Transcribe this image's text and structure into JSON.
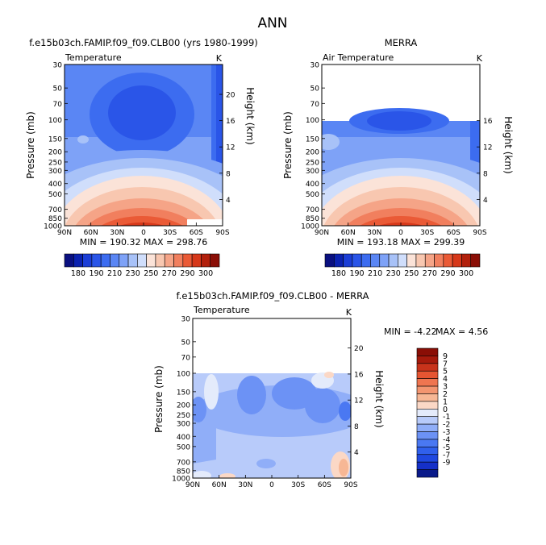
{
  "page_title": "ANN",
  "colors": {
    "levels_abs": [
      "#0a1080",
      "#0b22b0",
      "#1b3ed6",
      "#2a55e8",
      "#3c6cf0",
      "#5a86f4",
      "#7ea2f7",
      "#a8c2f8",
      "#d0defb",
      "#fbe3d8",
      "#f8c7b0",
      "#f5a487",
      "#f17f5e",
      "#ea5a36",
      "#d6381a",
      "#b2200c",
      "#8a0e06"
    ],
    "levels_diff": [
      "#0a1a8a",
      "#1530c8",
      "#1f48e0",
      "#3060ec",
      "#4a78f2",
      "#6c92f5",
      "#90aef8",
      "#b8cbfa",
      "#e4ebfb",
      "#fbd8c6",
      "#f7b795",
      "#f39570",
      "#ef7550",
      "#e55532",
      "#c8331b",
      "#a61a0c",
      "#8a0e06"
    ],
    "no_data": "#ffffff"
  },
  "chart_data": [
    {
      "type": "heatmap",
      "title": "f.e15b03ch.FAMIP.f09_f09.CLB00 (yrs 1980-1999)",
      "variable_label": "Temperature",
      "units_label": "K",
      "ylabel": "Pressure (mb)",
      "y2label": "Height (km)",
      "x_ticks": [
        "90N",
        "60N",
        "30N",
        "0",
        "30S",
        "60S",
        "90S"
      ],
      "y_ticks": [
        "30",
        "50",
        "70",
        "100",
        "150",
        "200",
        "250",
        "300",
        "400",
        "500",
        "700",
        "850",
        "1000"
      ],
      "y2_ticks": [
        "20",
        "16",
        "12",
        "8",
        "4"
      ],
      "stats": "MIN = 190.32   MAX = 298.76",
      "colorbar_ticks": [
        "180",
        "190",
        "210",
        "230",
        "250",
        "270",
        "290",
        "300"
      ]
    },
    {
      "type": "heatmap",
      "title": "MERRA",
      "variable_label": "Air Temperature",
      "units_label": "K",
      "ylabel": "Pressure (mb)",
      "y2label": "Height (km)",
      "x_ticks": [
        "90N",
        "60N",
        "30N",
        "0",
        "30S",
        "60S",
        "90S"
      ],
      "y_ticks": [
        "30",
        "50",
        "70",
        "100",
        "150",
        "200",
        "250",
        "300",
        "400",
        "500",
        "700",
        "850",
        "1000"
      ],
      "y2_ticks": [
        "16",
        "12",
        "8",
        "4"
      ],
      "stats": "MIN = 193.18   MAX = 299.39",
      "colorbar_ticks": [
        "180",
        "190",
        "210",
        "230",
        "250",
        "270",
        "290",
        "300"
      ],
      "data_top_mb": 100
    },
    {
      "type": "heatmap",
      "title": "f.e15b03ch.FAMIP.f09_f09.CLB00 - MERRA",
      "variable_label": "Temperature",
      "units_label": "K",
      "ylabel": "Pressure (mb)",
      "y2label": "Height (km)",
      "x_ticks": [
        "90N",
        "60N",
        "30N",
        "0",
        "30S",
        "60S",
        "90S"
      ],
      "y_ticks": [
        "30",
        "50",
        "70",
        "100",
        "150",
        "200",
        "250",
        "300",
        "400",
        "500",
        "700",
        "850",
        "1000"
      ],
      "y2_ticks": [
        "20",
        "16",
        "12",
        "8",
        "4"
      ],
      "stats_min": "MIN = -4.22",
      "stats_max": "MAX =   4.56",
      "colorbar_ticks": [
        "9",
        "7",
        "5",
        "4",
        "3",
        "2",
        "1",
        "0",
        "-1",
        "-2",
        "-3",
        "-4",
        "-5",
        "-7",
        "-9"
      ],
      "data_top_mb": 100
    }
  ]
}
